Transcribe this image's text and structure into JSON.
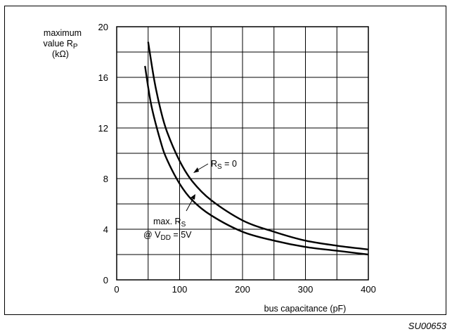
{
  "figure_id": "SU00653",
  "chart_data": {
    "type": "line",
    "ylabel_lines": [
      "maximum",
      "value R",
      "(kΩ)"
    ],
    "ylabel_sub": "P",
    "xlabel": "bus capacitance (pF)",
    "xlim": [
      0,
      400
    ],
    "ylim": [
      0,
      20
    ],
    "x_ticks": [
      0,
      100,
      200,
      300,
      400
    ],
    "y_ticks": [
      0,
      4,
      8,
      12,
      16,
      20
    ],
    "grid": true,
    "series": [
      {
        "points": [
          [
            50,
            18.8
          ],
          [
            60,
            15.7
          ],
          [
            70,
            13.4
          ],
          [
            80,
            11.7
          ],
          [
            100,
            9.4
          ],
          [
            120,
            7.8
          ],
          [
            150,
            6.3
          ],
          [
            200,
            4.7
          ],
          [
            250,
            3.8
          ],
          [
            300,
            3.1
          ],
          [
            350,
            2.7
          ],
          [
            400,
            2.4
          ]
        ]
      },
      {
        "points": [
          [
            45,
            16.9
          ],
          [
            55,
            13.8
          ],
          [
            70,
            10.9
          ],
          [
            80,
            9.5
          ],
          [
            100,
            7.6
          ],
          [
            120,
            6.3
          ],
          [
            150,
            5.1
          ],
          [
            200,
            3.8
          ],
          [
            250,
            3.1
          ],
          [
            300,
            2.6
          ],
          [
            350,
            2.3
          ],
          [
            400,
            2.0
          ]
        ]
      }
    ],
    "annotations": [
      {
        "text": "R",
        "sub": "S",
        "rest": " = 0"
      },
      {
        "line1_text": "max. R",
        "line1_sub": "S",
        "line2_pre": "@ V",
        "line2_sub": "DD",
        "line2_rest": " = 5V"
      }
    ]
  }
}
